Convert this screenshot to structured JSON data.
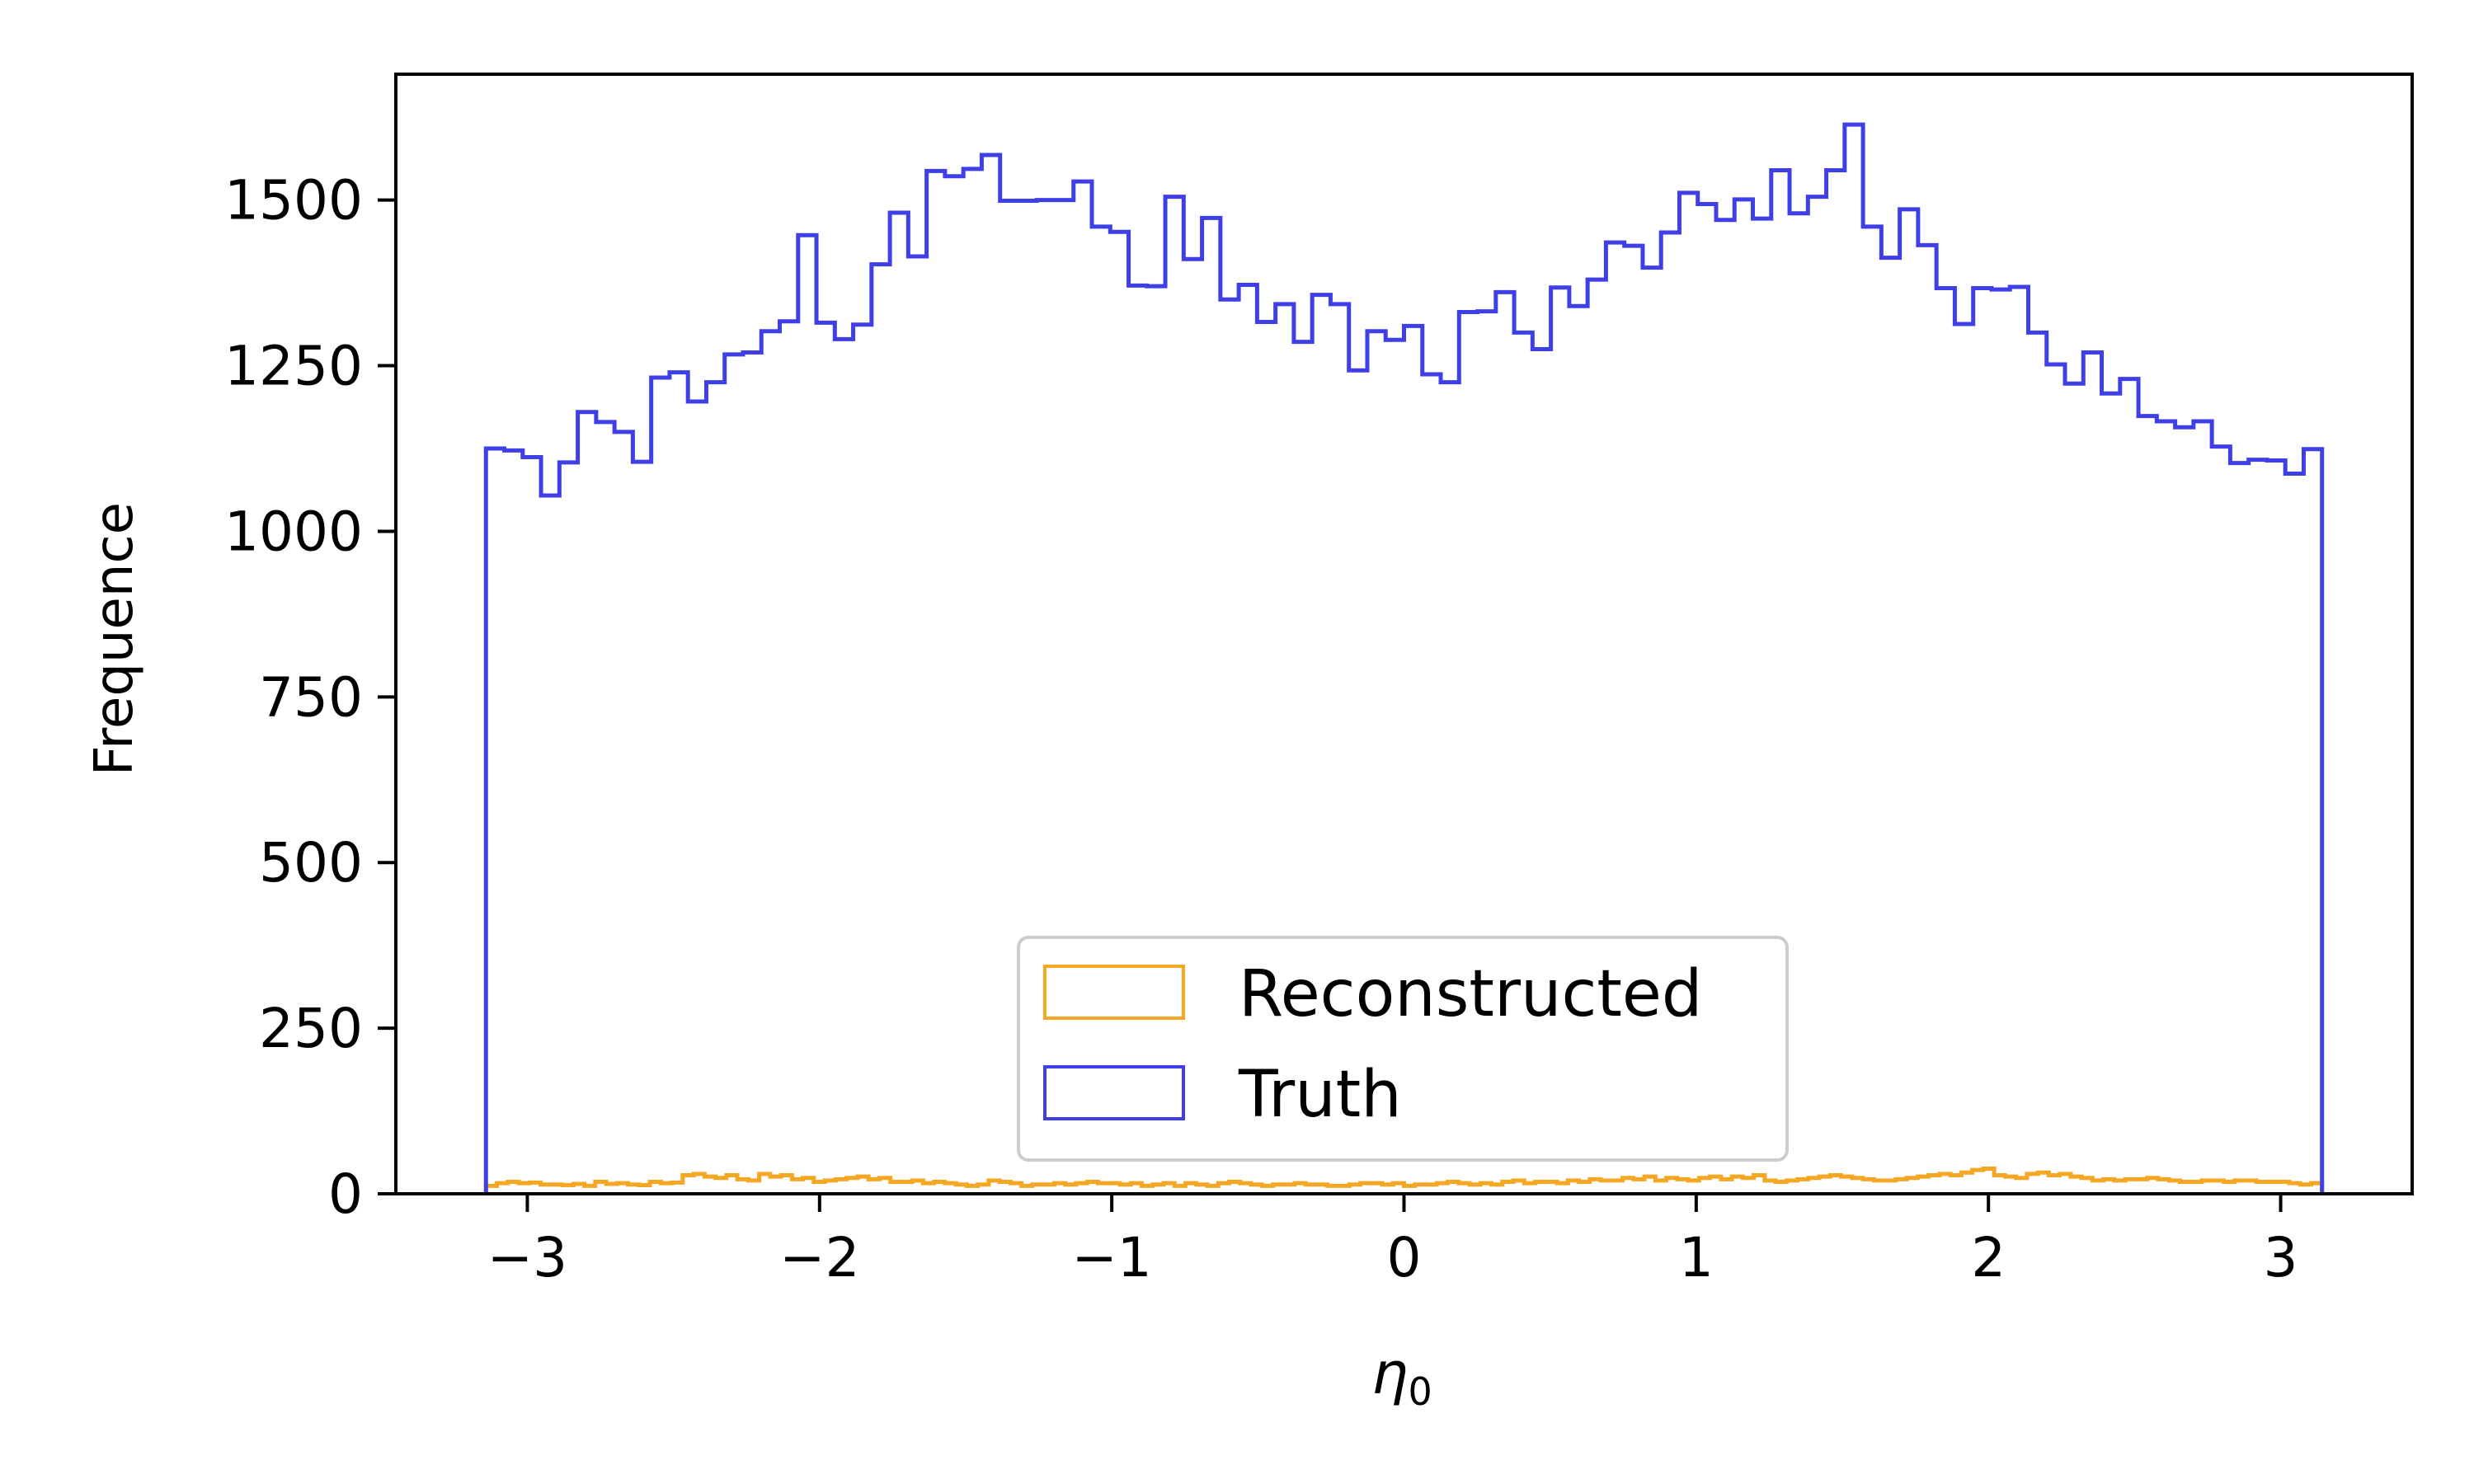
{
  "chart_data": {
    "type": "histogram-step",
    "xlabel_symbol": "η",
    "xlabel_subscript": "0",
    "ylabel": "Frequence",
    "xlim": [
      -3.45,
      3.45
    ],
    "ylim": [
      0,
      1690
    ],
    "xticks": [
      -3,
      -2,
      -1,
      0,
      1,
      2,
      3
    ],
    "xtick_labels": [
      "−3",
      "−2",
      "−1",
      "0",
      "1",
      "2",
      "3"
    ],
    "yticks": [
      0,
      250,
      500,
      750,
      1000,
      1250,
      1500
    ],
    "ytick_labels": [
      "0",
      "250",
      "500",
      "750",
      "1000",
      "1250",
      "1500"
    ],
    "legend_position": "lower center",
    "bin_range": [
      -3.14159,
      3.14159
    ],
    "series": [
      {
        "name": "Reconstructed",
        "color": "#f5a623",
        "values": [
          12,
          16,
          18,
          16,
          17,
          14,
          14,
          13,
          15,
          12,
          18,
          15,
          16,
          14,
          13,
          18,
          16,
          17,
          28,
          30,
          26,
          24,
          28,
          22,
          20,
          30,
          26,
          28,
          22,
          24,
          18,
          20,
          22,
          24,
          26,
          22,
          24,
          18,
          18,
          20,
          16,
          18,
          16,
          14,
          12,
          14,
          20,
          18,
          16,
          12,
          14,
          14,
          16,
          14,
          16,
          18,
          16,
          16,
          14,
          16,
          12,
          14,
          16,
          12,
          16,
          14,
          12,
          16,
          18,
          16,
          14,
          12,
          14,
          14,
          16,
          14,
          14,
          12,
          12,
          14,
          16,
          16,
          14,
          16,
          12,
          14,
          14,
          16,
          18,
          16,
          14,
          16,
          14,
          18,
          20,
          16,
          18,
          18,
          16,
          20,
          18,
          22,
          20,
          20,
          24,
          22,
          26,
          20,
          24,
          22,
          20,
          24,
          26,
          22,
          26,
          24,
          28,
          20,
          18,
          20,
          22,
          24,
          26,
          28,
          26,
          24,
          22,
          20,
          20,
          22,
          24,
          26,
          28,
          30,
          28,
          32,
          36,
          38,
          28,
          26,
          24,
          30,
          32,
          28,
          30,
          26,
          24,
          20,
          22,
          20,
          22,
          22,
          24,
          22,
          20,
          18,
          18,
          20,
          20,
          18,
          20,
          20,
          18,
          18,
          18,
          16,
          14,
          16
        ],
        "_comment_values": "one value per bin across bin_range"
      },
      {
        "name": "Truth",
        "color": "#3f3fe8",
        "values": [
          1125,
          1122,
          1112,
          1054,
          1104,
          1180,
          1165,
          1150,
          1105,
          1232,
          1240,
          1196,
          1225,
          1267,
          1270,
          1302,
          1317,
          1447,
          1315,
          1290,
          1312,
          1403,
          1481,
          1415,
          1544,
          1536,
          1547,
          1568,
          1499,
          1499,
          1500,
          1500,
          1528,
          1460,
          1452,
          1371,
          1370,
          1505,
          1411,
          1473,
          1350,
          1372,
          1316,
          1343,
          1286,
          1357,
          1343,
          1243,
          1302,
          1289,
          1310,
          1237,
          1225,
          1331,
          1332,
          1361,
          1300,
          1275,
          1368,
          1340,
          1380,
          1436,
          1431,
          1398,
          1451,
          1511,
          1494,
          1470,
          1501,
          1472,
          1545,
          1480,
          1505,
          1545,
          1614,
          1460,
          1413,
          1486,
          1432,
          1367,
          1313,
          1367,
          1365,
          1369,
          1300,
          1252,
          1223,
          1270,
          1208,
          1230,
          1174,
          1166,
          1157,
          1166,
          1128,
          1103,
          1108,
          1107,
          1087,
          1124
        ]
      }
    ]
  }
}
